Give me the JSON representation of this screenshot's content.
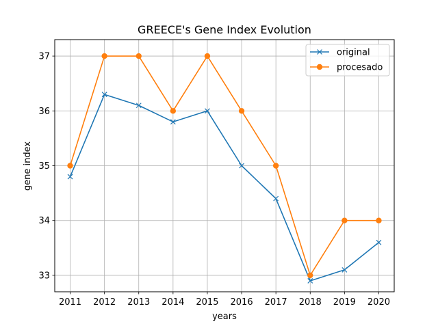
{
  "chart_data": {
    "type": "line",
    "title": "GREECE's Gene Index Evolution",
    "xlabel": "years",
    "ylabel": "gene index",
    "categories": [
      "2011",
      "2012",
      "2013",
      "2014",
      "2015",
      "2016",
      "2017",
      "2018",
      "2019",
      "2020"
    ],
    "x": [
      2011,
      2012,
      2013,
      2014,
      2015,
      2016,
      2017,
      2018,
      2019,
      2020
    ],
    "xlim": [
      2010.55,
      2020.45
    ],
    "ylim": [
      32.7,
      37.3
    ],
    "yticks": [
      33,
      34,
      35,
      36,
      37
    ],
    "grid": true,
    "legend_position": "upper right",
    "series": [
      {
        "name": "original",
        "color": "#1f77b4",
        "marker": "x",
        "values": [
          34.8,
          36.3,
          36.1,
          35.8,
          36.0,
          35.0,
          34.4,
          32.9,
          33.1,
          33.6
        ]
      },
      {
        "name": "procesado",
        "color": "#ff7f0e",
        "marker": "o",
        "values": [
          35,
          37,
          37,
          36,
          37,
          36,
          35,
          33,
          34,
          34
        ]
      }
    ]
  }
}
